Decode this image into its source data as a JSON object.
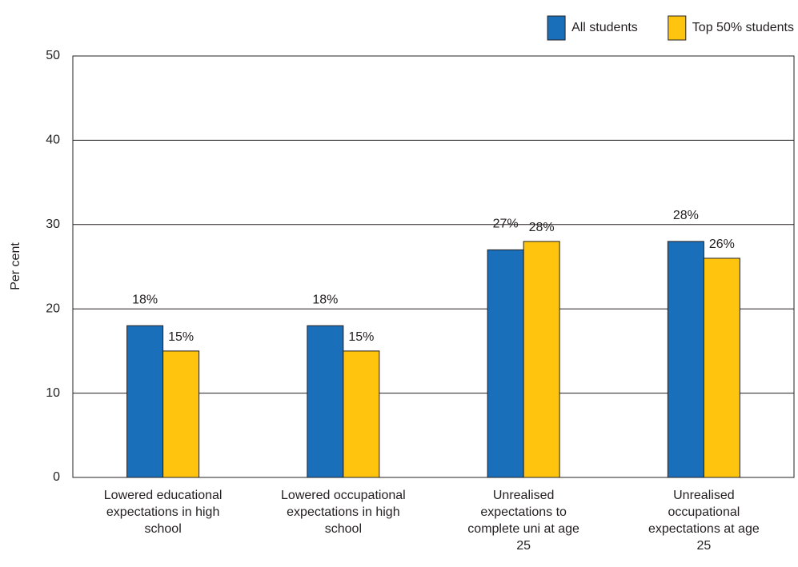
{
  "chart_data": {
    "type": "bar",
    "y_label": "Per cent",
    "categories": [
      "Lowered educational expectations in high school",
      "Lowered occupational expectations in high school",
      "Unrealised expectations to complete uni at age 25",
      "Unrealised occupational expectations at age 25"
    ],
    "series": [
      {
        "name": "All students",
        "color": "#1a6fba",
        "values": [
          18,
          18,
          27,
          28
        ],
        "value_labels": [
          "18%",
          "18%",
          "27%",
          "28%"
        ]
      },
      {
        "name": "Top 50% students",
        "color": "#fec40e",
        "values": [
          15,
          15,
          28,
          26
        ],
        "value_labels": [
          "15%",
          "15%",
          "28%",
          "26%"
        ]
      }
    ],
    "ylim": [
      0,
      50
    ],
    "yticks": [
      0,
      10,
      20,
      30,
      40,
      50
    ],
    "grid": true,
    "legend": "top-right"
  }
}
